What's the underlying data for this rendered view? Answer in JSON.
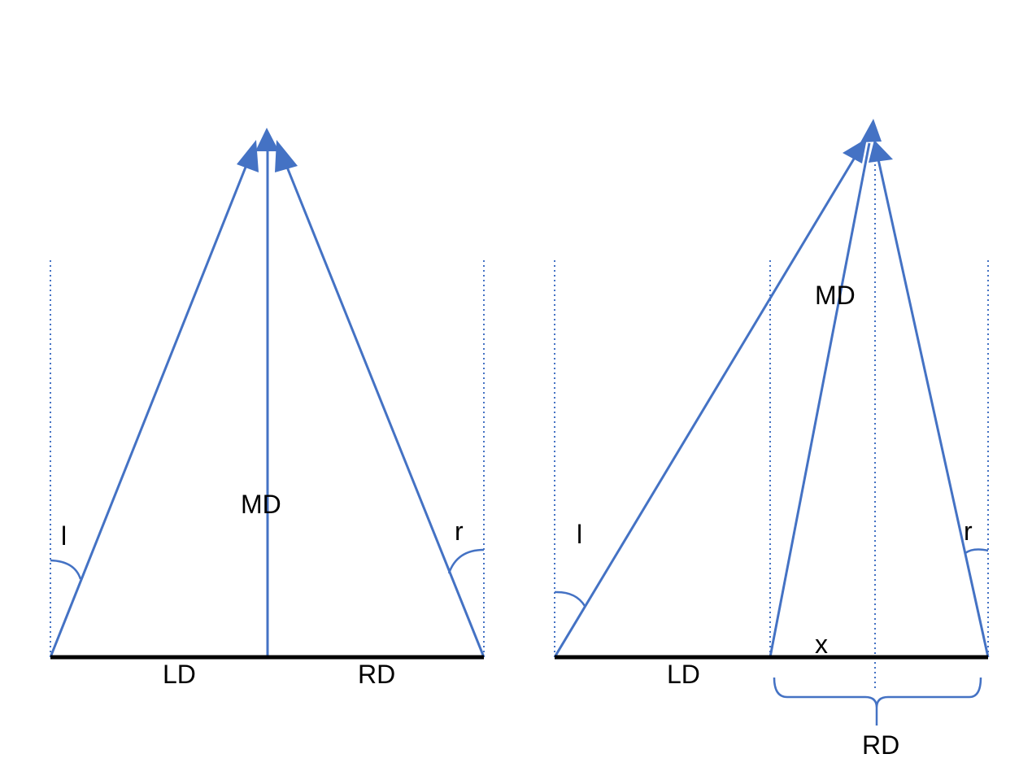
{
  "colors": {
    "vector": "#4472C4",
    "baseline": "#000000",
    "text": "#000000",
    "background": "#ffffff"
  },
  "left_diagram": {
    "labels": {
      "md": "MD",
      "ld": "LD",
      "rd": "RD",
      "angle_l": "l",
      "angle_r": "r"
    }
  },
  "right_diagram": {
    "labels": {
      "md": "MD",
      "ld": "LD",
      "rd": "RD",
      "x": "x",
      "angle_l": "l",
      "angle_r": "r"
    }
  }
}
